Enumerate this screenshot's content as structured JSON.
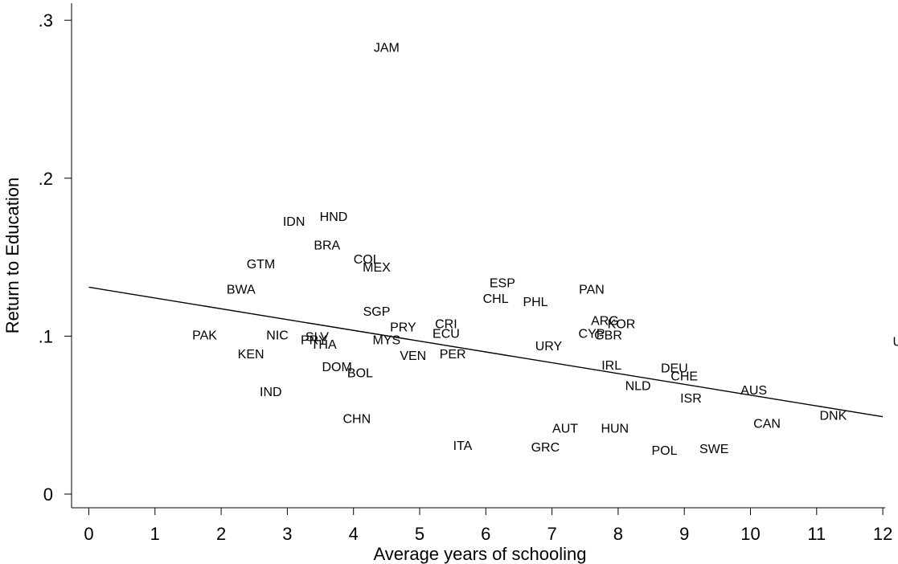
{
  "chart_data": {
    "type": "scatter",
    "xlabel": "Average years of schooling",
    "ylabel": "Return to Education",
    "xlim": [
      -0.25,
      12.25
    ],
    "ylim": [
      -0.008,
      0.305
    ],
    "x_ticks": [
      0,
      1,
      2,
      3,
      4,
      5,
      6,
      7,
      8,
      9,
      10,
      11,
      12
    ],
    "x_tick_labels": [
      "0",
      "1",
      "2",
      "3",
      "4",
      "5",
      "6",
      "7",
      "8",
      "9",
      "10",
      "11",
      "12"
    ],
    "y_ticks": [
      0,
      0.1,
      0.2,
      0.3
    ],
    "y_tick_labels": [
      "0",
      ".1",
      ".2",
      ".3"
    ],
    "grid": false,
    "marker": "country code label",
    "points": [
      {
        "label": "JAM",
        "x": 4.5,
        "y": 0.283
      },
      {
        "label": "HND",
        "x": 3.7,
        "y": 0.176
      },
      {
        "label": "IDN",
        "x": 3.1,
        "y": 0.173
      },
      {
        "label": "BRA",
        "x": 3.6,
        "y": 0.158
      },
      {
        "label": "GTM",
        "x": 2.6,
        "y": 0.146
      },
      {
        "label": "COL",
        "x": 4.2,
        "y": 0.149
      },
      {
        "label": "MEX",
        "x": 4.35,
        "y": 0.144
      },
      {
        "label": "BWA",
        "x": 2.3,
        "y": 0.13
      },
      {
        "label": "ESP",
        "x": 6.25,
        "y": 0.134
      },
      {
        "label": "CHL",
        "x": 6.15,
        "y": 0.124
      },
      {
        "label": "PHL",
        "x": 6.75,
        "y": 0.122
      },
      {
        "label": "PAN",
        "x": 7.6,
        "y": 0.13
      },
      {
        "label": "SGP",
        "x": 4.35,
        "y": 0.116
      },
      {
        "label": "ARG",
        "x": 7.8,
        "y": 0.11
      },
      {
        "label": "KOR",
        "x": 8.05,
        "y": 0.108
      },
      {
        "label": "CRI",
        "x": 5.4,
        "y": 0.108
      },
      {
        "label": "PRY",
        "x": 4.75,
        "y": 0.106
      },
      {
        "label": "ECU",
        "x": 5.4,
        "y": 0.102
      },
      {
        "label": "CYP",
        "x": 7.6,
        "y": 0.102
      },
      {
        "label": "GBR",
        "x": 7.85,
        "y": 0.101
      },
      {
        "label": "PAK",
        "x": 1.75,
        "y": 0.101
      },
      {
        "label": "NIC",
        "x": 2.85,
        "y": 0.101
      },
      {
        "label": "SLV",
        "x": 3.45,
        "y": 0.1
      },
      {
        "label": "PRY",
        "x": 3.4,
        "y": 0.098
      },
      {
        "label": "THA",
        "x": 3.55,
        "y": 0.095
      },
      {
        "label": "MYS",
        "x": 4.5,
        "y": 0.098
      },
      {
        "label": "URY",
        "x": 6.95,
        "y": 0.094
      },
      {
        "label": "KEN",
        "x": 2.45,
        "y": 0.089
      },
      {
        "label": "VEN",
        "x": 4.9,
        "y": 0.088
      },
      {
        "label": "PER",
        "x": 5.5,
        "y": 0.089
      },
      {
        "label": "IRL",
        "x": 7.9,
        "y": 0.082
      },
      {
        "label": "DOM",
        "x": 3.75,
        "y": 0.081
      },
      {
        "label": "DEU",
        "x": 8.85,
        "y": 0.08
      },
      {
        "label": "BOL",
        "x": 4.1,
        "y": 0.077
      },
      {
        "label": "CHE",
        "x": 9.0,
        "y": 0.075
      },
      {
        "label": "NLD",
        "x": 8.3,
        "y": 0.069
      },
      {
        "label": "AUS",
        "x": 10.05,
        "y": 0.066
      },
      {
        "label": "IND",
        "x": 2.75,
        "y": 0.065
      },
      {
        "label": "ISR",
        "x": 9.1,
        "y": 0.061
      },
      {
        "label": "DNK",
        "x": 11.25,
        "y": 0.05
      },
      {
        "label": "CHN",
        "x": 4.05,
        "y": 0.048
      },
      {
        "label": "CAN",
        "x": 10.25,
        "y": 0.045
      },
      {
        "label": "AUT",
        "x": 7.2,
        "y": 0.042
      },
      {
        "label": "HUN",
        "x": 7.95,
        "y": 0.042
      },
      {
        "label": "ITA",
        "x": 5.65,
        "y": 0.031
      },
      {
        "label": "GRC",
        "x": 6.9,
        "y": 0.03
      },
      {
        "label": "POL",
        "x": 8.7,
        "y": 0.028
      },
      {
        "label": "SWE",
        "x": 9.45,
        "y": 0.029
      },
      {
        "label": "USA",
        "x": 12.35,
        "y": 0.097
      }
    ],
    "fit_line": {
      "x": [
        0,
        12
      ],
      "y": [
        0.131,
        0.049
      ]
    }
  }
}
